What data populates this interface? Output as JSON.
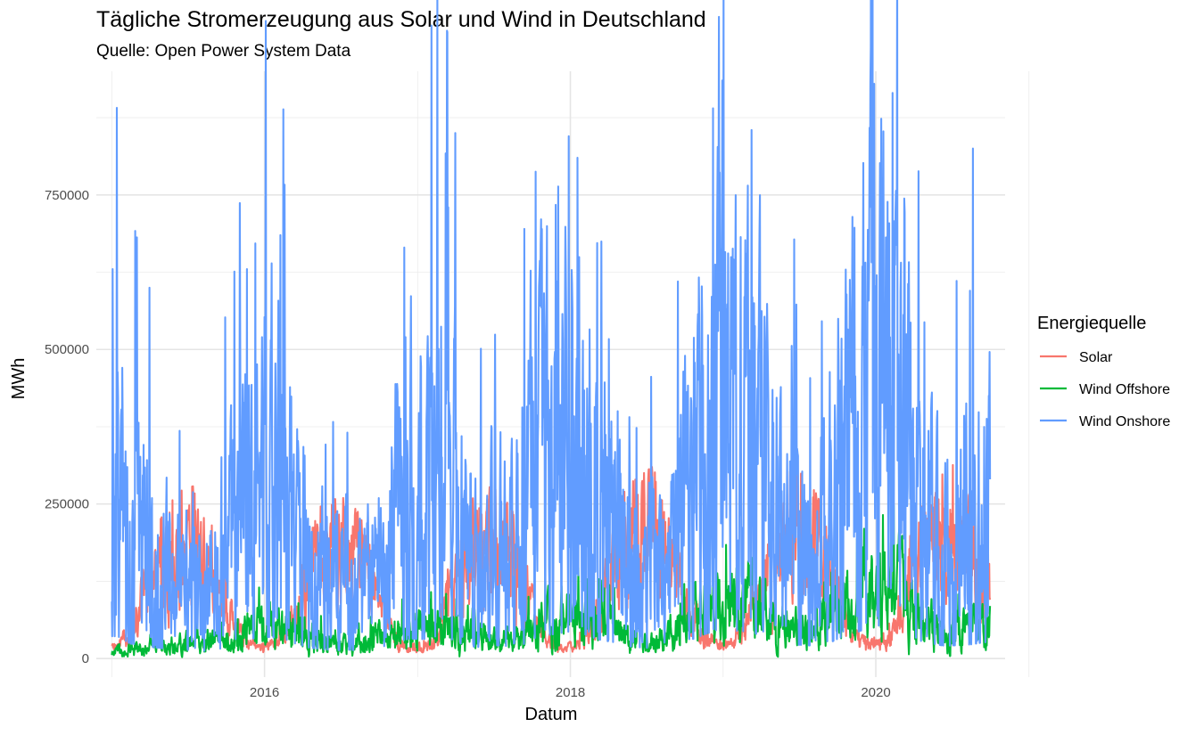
{
  "chart_data": {
    "type": "line",
    "title": "Tägliche Stromerzeugung aus Solar und Wind in Deutschland",
    "subtitle": "Quelle: Open Power System Data",
    "xlabel": "Datum",
    "ylabel": "MWh",
    "x_start": "2015-01-01",
    "x_end": "2020-09-30",
    "xlim": [
      "2014-11-25",
      "2020-11-05"
    ],
    "ylim": [
      -30000,
      950000
    ],
    "x_ticks": [
      {
        "value": "2016-01-01",
        "label": "2016"
      },
      {
        "value": "2018-01-01",
        "label": "2018"
      },
      {
        "value": "2020-01-01",
        "label": "2020"
      }
    ],
    "x_minor_ticks": [
      "2015-01-01",
      "2017-01-01",
      "2019-01-01",
      "2021-01-01"
    ],
    "y_ticks": [
      {
        "value": 0,
        "label": "0"
      },
      {
        "value": 250000,
        "label": "250000"
      },
      {
        "value": 500000,
        "label": "500000"
      },
      {
        "value": 750000,
        "label": "750000"
      }
    ],
    "y_minor_ticks": [
      125000,
      375000,
      625000,
      875000
    ],
    "grid": true,
    "legend": {
      "title": "Energiequelle",
      "position": "right"
    },
    "series": [
      {
        "name": "Solar",
        "color": "#F8766D",
        "frequency": "monthly-mean",
        "x": [
          "2015-01",
          "2015-02",
          "2015-03",
          "2015-04",
          "2015-05",
          "2015-06",
          "2015-07",
          "2015-08",
          "2015-09",
          "2015-10",
          "2015-11",
          "2015-12",
          "2016-01",
          "2016-02",
          "2016-03",
          "2016-04",
          "2016-05",
          "2016-06",
          "2016-07",
          "2016-08",
          "2016-09",
          "2016-10",
          "2016-11",
          "2016-12",
          "2017-01",
          "2017-02",
          "2017-03",
          "2017-04",
          "2017-05",
          "2017-06",
          "2017-07",
          "2017-08",
          "2017-09",
          "2017-10",
          "2017-11",
          "2017-12",
          "2018-01",
          "2018-02",
          "2018-03",
          "2018-04",
          "2018-05",
          "2018-06",
          "2018-07",
          "2018-08",
          "2018-09",
          "2018-10",
          "2018-11",
          "2018-12",
          "2019-01",
          "2019-02",
          "2019-03",
          "2019-04",
          "2019-05",
          "2019-06",
          "2019-07",
          "2019-08",
          "2019-09",
          "2019-10",
          "2019-11",
          "2019-12",
          "2020-01",
          "2020-02",
          "2020-03",
          "2020-04",
          "2020-05",
          "2020-06",
          "2020-07",
          "2020-08",
          "2020-09"
        ],
        "values": [
          20000,
          40000,
          90000,
          135000,
          160000,
          175000,
          180000,
          160000,
          110000,
          60000,
          30000,
          20000,
          20000,
          40000,
          80000,
          125000,
          160000,
          170000,
          175000,
          150000,
          115000,
          60000,
          30000,
          15000,
          20000,
          40000,
          95000,
          130000,
          170000,
          180000,
          175000,
          155000,
          105000,
          55000,
          25000,
          15000,
          20000,
          45000,
          85000,
          145000,
          180000,
          190000,
          200000,
          175000,
          125000,
          80000,
          35000,
          20000,
          20000,
          55000,
          90000,
          145000,
          170000,
          200000,
          190000,
          170000,
          120000,
          65000,
          30000,
          20000,
          25000,
          45000,
          110000,
          180000,
          200000,
          190000,
          210000,
          190000,
          130000
        ]
      },
      {
        "name": "Wind Offshore",
        "color": "#00BA38",
        "frequency": "monthly-mean",
        "x": [
          "2015-01",
          "2015-02",
          "2015-03",
          "2015-04",
          "2015-05",
          "2015-06",
          "2015-07",
          "2015-08",
          "2015-09",
          "2015-10",
          "2015-11",
          "2015-12",
          "2016-01",
          "2016-02",
          "2016-03",
          "2016-04",
          "2016-05",
          "2016-06",
          "2016-07",
          "2016-08",
          "2016-09",
          "2016-10",
          "2016-11",
          "2016-12",
          "2017-01",
          "2017-02",
          "2017-03",
          "2017-04",
          "2017-05",
          "2017-06",
          "2017-07",
          "2017-08",
          "2017-09",
          "2017-10",
          "2017-11",
          "2017-12",
          "2018-01",
          "2018-02",
          "2018-03",
          "2018-04",
          "2018-05",
          "2018-06",
          "2018-07",
          "2018-08",
          "2018-09",
          "2018-10",
          "2018-11",
          "2018-12",
          "2019-01",
          "2019-02",
          "2019-03",
          "2019-04",
          "2019-05",
          "2019-06",
          "2019-07",
          "2019-08",
          "2019-09",
          "2019-10",
          "2019-11",
          "2019-12",
          "2020-01",
          "2020-02",
          "2020-03",
          "2020-04",
          "2020-05",
          "2020-06",
          "2020-07",
          "2020-08",
          "2020-09"
        ],
        "values": [
          12000,
          14000,
          15000,
          18000,
          20000,
          22000,
          25000,
          28000,
          30000,
          35000,
          45000,
          50000,
          50000,
          48000,
          40000,
          35000,
          30000,
          25000,
          22000,
          25000,
          30000,
          35000,
          40000,
          45000,
          45000,
          48000,
          45000,
          40000,
          35000,
          30000,
          28000,
          30000,
          40000,
          55000,
          60000,
          65000,
          65000,
          60000,
          55000,
          50000,
          40000,
          35000,
          30000,
          35000,
          45000,
          60000,
          70000,
          80000,
          80000,
          85000,
          80000,
          70000,
          55000,
          50000,
          45000,
          50000,
          60000,
          75000,
          85000,
          95000,
          100000,
          110000,
          95000,
          70000,
          55000,
          50000,
          45000,
          50000,
          55000
        ]
      },
      {
        "name": "Wind Onshore",
        "color": "#619CFF",
        "frequency": "monthly-mean",
        "x": [
          "2015-01",
          "2015-02",
          "2015-03",
          "2015-04",
          "2015-05",
          "2015-06",
          "2015-07",
          "2015-08",
          "2015-09",
          "2015-10",
          "2015-11",
          "2015-12",
          "2016-01",
          "2016-02",
          "2016-03",
          "2016-04",
          "2016-05",
          "2016-06",
          "2016-07",
          "2016-08",
          "2016-09",
          "2016-10",
          "2016-11",
          "2016-12",
          "2017-01",
          "2017-02",
          "2017-03",
          "2017-04",
          "2017-05",
          "2017-06",
          "2017-07",
          "2017-08",
          "2017-09",
          "2017-10",
          "2017-11",
          "2017-12",
          "2018-01",
          "2018-02",
          "2018-03",
          "2018-04",
          "2018-05",
          "2018-06",
          "2018-07",
          "2018-08",
          "2018-09",
          "2018-10",
          "2018-11",
          "2018-12",
          "2019-01",
          "2019-02",
          "2019-03",
          "2019-04",
          "2019-05",
          "2019-06",
          "2019-07",
          "2019-08",
          "2019-09",
          "2019-10",
          "2019-11",
          "2019-12",
          "2020-01",
          "2020-02",
          "2020-03",
          "2020-04",
          "2020-05",
          "2020-06",
          "2020-07",
          "2020-08",
          "2020-09"
        ],
        "values": [
          300000,
          200000,
          180000,
          150000,
          130000,
          110000,
          120000,
          100000,
          130000,
          180000,
          250000,
          280000,
          290000,
          270000,
          200000,
          150000,
          130000,
          110000,
          120000,
          110000,
          120000,
          170000,
          230000,
          270000,
          260000,
          300000,
          280000,
          200000,
          160000,
          150000,
          180000,
          160000,
          200000,
          300000,
          320000,
          350000,
          380000,
          300000,
          250000,
          220000,
          170000,
          150000,
          140000,
          150000,
          200000,
          250000,
          320000,
          380000,
          380000,
          370000,
          350000,
          260000,
          210000,
          190000,
          180000,
          170000,
          220000,
          300000,
          350000,
          420000,
          450000,
          480000,
          380000,
          240000,
          200000,
          170000,
          180000,
          190000,
          220000
        ],
        "peaks": [
          {
            "x": "2015-01-03",
            "y": 630000
          },
          {
            "x": "2015-04-01",
            "y": 600000
          },
          {
            "x": "2015-11-20",
            "y": 630000
          },
          {
            "x": "2016-02-08",
            "y": 685000
          },
          {
            "x": "2016-11-30",
            "y": 665000
          },
          {
            "x": "2017-03-15",
            "y": 730000
          },
          {
            "x": "2017-09-13",
            "y": 695000
          },
          {
            "x": "2017-12-28",
            "y": 845000
          },
          {
            "x": "2018-01-18",
            "y": 810000
          },
          {
            "x": "2018-12-08",
            "y": 890000
          },
          {
            "x": "2019-03-10",
            "y": 855000
          },
          {
            "x": "2020-02-10",
            "y": 915000
          },
          {
            "x": "2020-08-20",
            "y": 825000
          }
        ]
      }
    ]
  }
}
